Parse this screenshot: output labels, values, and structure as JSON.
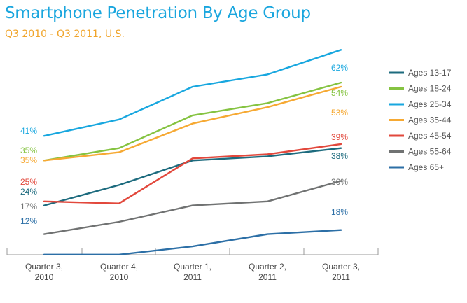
{
  "chart_data": {
    "type": "line",
    "title": "Smartphone Penetration By Age Group",
    "subtitle": "Q3 2010 - Q3 2011, U.S.",
    "categories": [
      [
        "Quarter 3,",
        "2010"
      ],
      [
        "Quarter 4,",
        "2010"
      ],
      [
        "Quarter 1,",
        "2011"
      ],
      [
        "Quarter 2,",
        "2011"
      ],
      [
        "Quarter 3,",
        "2011"
      ]
    ],
    "xlabel": "",
    "ylabel": "",
    "ylim": [
      0,
      70
    ],
    "grid": false,
    "legend_position": "right",
    "series": [
      {
        "name": "Ages 13-17",
        "color": "#1d6b7e",
        "values": [
          24,
          29,
          35,
          36,
          38
        ],
        "start_label": "24%",
        "end_label": "38%"
      },
      {
        "name": "Ages 18-24",
        "color": "#85c341",
        "values": [
          35,
          38,
          46,
          49,
          54
        ],
        "start_label": "35%",
        "end_label": "54%"
      },
      {
        "name": "Ages 25-34",
        "color": "#18a7df",
        "values": [
          41,
          45,
          53,
          56,
          62
        ],
        "start_label": "41%",
        "end_label": "62%"
      },
      {
        "name": "Ages 35-44",
        "color": "#f6a933",
        "values": [
          35,
          37,
          44,
          48,
          53
        ],
        "start_label": "35%",
        "end_label": "53%"
      },
      {
        "name": "Ages 45-54",
        "color": "#e2483c",
        "values": [
          25,
          24.5,
          35.5,
          36.5,
          39
        ],
        "start_label": "25%",
        "end_label": "39%"
      },
      {
        "name": "Ages 55-64",
        "color": "#707272",
        "values": [
          17,
          20,
          24,
          25,
          30
        ],
        "start_label": "17%",
        "end_label": "30%"
      },
      {
        "name": "Ages 65+",
        "color": "#2c6fa6",
        "values": [
          12,
          12,
          14,
          17,
          18
        ],
        "start_label": "12%",
        "end_label": "18%"
      }
    ]
  }
}
